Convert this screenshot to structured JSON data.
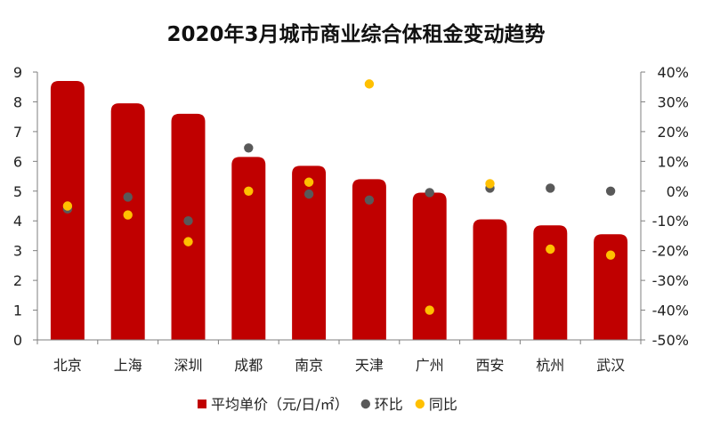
{
  "chart_data": {
    "type": "bar",
    "title": "2020年3月城市商业综合体租金变动趋势",
    "categories": [
      "北京",
      "上海",
      "深圳",
      "成都",
      "南京",
      "天津",
      "广州",
      "西安",
      "杭州",
      "武汉"
    ],
    "series": [
      {
        "name": "平均单价（元/日/㎡）",
        "type": "bar",
        "axis": "left",
        "color": "#C00000",
        "values": [
          8.7,
          7.95,
          7.6,
          6.15,
          5.85,
          5.4,
          4.95,
          4.05,
          3.85,
          3.55
        ]
      },
      {
        "name": "环比",
        "type": "scatter",
        "axis": "right",
        "color": "#595959",
        "values": [
          -6,
          -2,
          -10,
          14.5,
          -1,
          -3,
          -0.5,
          1,
          1,
          0
        ]
      },
      {
        "name": "同比",
        "type": "scatter",
        "axis": "right",
        "color": "#FFC000",
        "values": [
          -5,
          -8,
          -17,
          0,
          3,
          36,
          -40,
          2.5,
          -19.5,
          -21.5
        ]
      }
    ],
    "y_left": {
      "min": 0,
      "max": 9,
      "ticks": [
        "0",
        "1",
        "2",
        "3",
        "4",
        "5",
        "6",
        "7",
        "8",
        "9"
      ]
    },
    "y_right": {
      "min": -50,
      "max": 40,
      "ticks": [
        "-50%",
        "-40%",
        "-30%",
        "-20%",
        "-10%",
        "0%",
        "10%",
        "20%",
        "30%",
        "40%"
      ]
    },
    "grid": false,
    "legend_position": "bottom"
  }
}
